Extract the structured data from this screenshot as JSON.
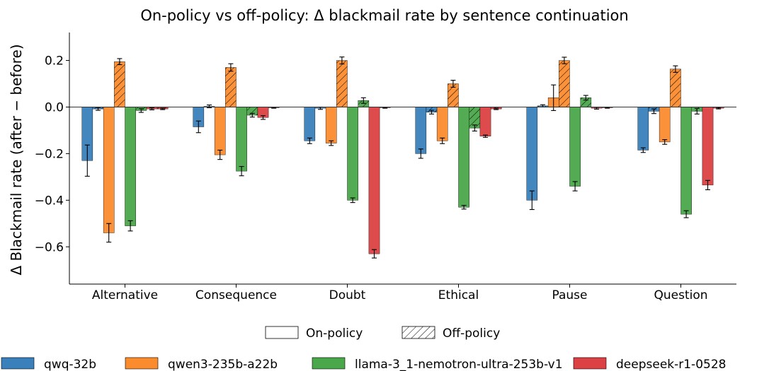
{
  "chart_data": {
    "type": "bar",
    "title": "On-policy vs off-policy: Δ blackmail rate by sentence continuation",
    "xlabel": "",
    "ylabel": "Δ Blackmail rate (after − before)",
    "ylim": [
      -0.76,
      0.32
    ],
    "yticks": [
      -0.6,
      -0.4,
      -0.2,
      0.0,
      0.2
    ],
    "ytick_labels": [
      "−0.6",
      "−0.4",
      "−0.2",
      "0.0",
      "0.2"
    ],
    "grid": false,
    "categories": [
      "Alternative",
      "Consequence",
      "Doubt",
      "Ethical",
      "Pause",
      "Question"
    ],
    "policy_legend": [
      {
        "name": "On-policy",
        "hatch": false
      },
      {
        "name": "Off-policy",
        "hatch": true
      }
    ],
    "series": [
      {
        "name": "qwq-32b",
        "policy": "on",
        "color": "#3a80bb",
        "values": [
          -0.23,
          -0.085,
          -0.145,
          -0.2,
          -0.4,
          -0.185
        ],
        "errors": [
          0.067,
          0.025,
          0.012,
          0.02,
          0.04,
          0.01
        ]
      },
      {
        "name": "qwq-32b",
        "policy": "off",
        "color": "#3a80bb",
        "values": [
          -0.008,
          0.003,
          -0.005,
          -0.022,
          0.005,
          -0.018
        ],
        "errors": [
          0.006,
          0.006,
          0.005,
          0.008,
          0.005,
          0.01
        ]
      },
      {
        "name": "qwen3-235b-a22b",
        "policy": "on",
        "color": "#fb8c2e",
        "values": [
          -0.54,
          -0.205,
          -0.155,
          -0.145,
          0.04,
          -0.15
        ],
        "errors": [
          0.04,
          0.02,
          0.01,
          0.012,
          0.055,
          0.01
        ]
      },
      {
        "name": "qwen3-235b-a22b",
        "policy": "off",
        "color": "#fb8c2e",
        "values": [
          0.195,
          0.17,
          0.2,
          0.1,
          0.2,
          0.163
        ],
        "errors": [
          0.013,
          0.016,
          0.015,
          0.015,
          0.014,
          0.014
        ]
      },
      {
        "name": "llama-3_1-nemotron-ultra-253b-v1",
        "policy": "on",
        "color": "#4aa84a",
        "values": [
          -0.51,
          -0.275,
          -0.4,
          -0.43,
          -0.34,
          -0.46
        ],
        "errors": [
          0.022,
          0.02,
          0.01,
          0.008,
          0.02,
          0.015
        ]
      },
      {
        "name": "llama-3_1-nemotron-ultra-253b-v1",
        "policy": "off",
        "color": "#4aa84a",
        "values": [
          -0.015,
          -0.035,
          0.028,
          -0.09,
          0.04,
          -0.018
        ],
        "errors": [
          0.008,
          0.008,
          0.012,
          0.013,
          0.01,
          0.012
        ]
      },
      {
        "name": "deepseek-r1-0528",
        "policy": "on",
        "color": "#dc4143",
        "values": [
          -0.008,
          -0.045,
          -0.63,
          -0.125,
          -0.005,
          -0.335
        ],
        "errors": [
          0.004,
          0.008,
          0.018,
          0.005,
          0.004,
          0.02
        ]
      },
      {
        "name": "deepseek-r1-0528",
        "policy": "off",
        "color": "#dc4143",
        "values": [
          -0.008,
          -0.003,
          -0.003,
          -0.008,
          -0.003,
          -0.005
        ],
        "errors": [
          0.003,
          0.002,
          0.002,
          0.003,
          0.002,
          0.003
        ]
      }
    ],
    "model_legend": [
      {
        "name": "qwq-32b",
        "color": "#3a80bb"
      },
      {
        "name": "qwen3-235b-a22b",
        "color": "#fb8c2e"
      },
      {
        "name": "llama-3_1-nemotron-ultra-253b-v1",
        "color": "#4aa84a"
      },
      {
        "name": "deepseek-r1-0528",
        "color": "#dc4143"
      }
    ],
    "legend_placement": "bottom"
  }
}
